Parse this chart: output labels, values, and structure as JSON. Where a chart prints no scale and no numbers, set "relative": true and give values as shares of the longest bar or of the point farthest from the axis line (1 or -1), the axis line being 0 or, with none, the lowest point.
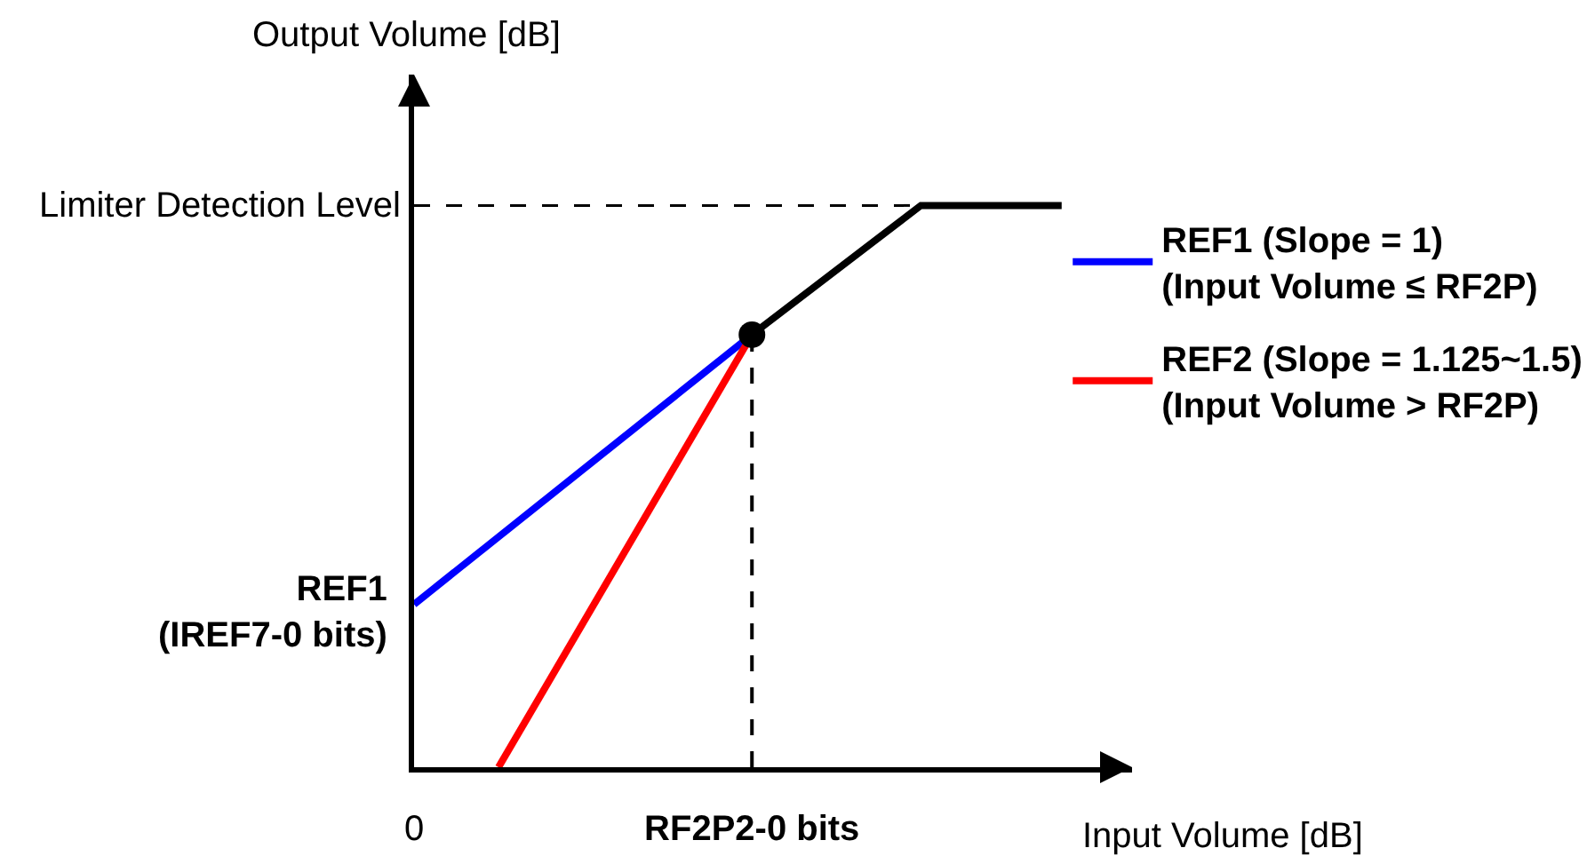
{
  "chart_data": {
    "type": "line",
    "relative": true,
    "categories": [
      "0",
      null,
      null,
      null,
      null,
      null,
      null,
      null,
      null,
      null,
      null,
      null,
      "RF2P2-0 bits",
      null,
      null,
      null,
      null,
      null,
      null,
      null,
      null,
      null,
      null,
      null
    ],
    "series": [
      {
        "name": "REF1 (Slope = 1)\n(Input Volume ≤ RF2P)",
        "color": "#0000ff",
        "values": [
          0.29,
          null,
          null,
          null,
          null,
          null,
          null,
          null,
          null,
          null,
          null,
          null,
          0.77,
          null,
          null,
          null,
          null,
          null,
          null,
          null,
          null,
          null,
          null,
          null
        ]
      },
      {
        "name": "REF2 (Slope = 1.125~1.5)\n(Input Volume > RF2P)",
        "color": "#ff0000",
        "values": [
          null,
          null,
          null,
          0,
          null,
          null,
          null,
          null,
          null,
          null,
          null,
          null,
          0.77,
          null,
          null,
          null,
          null,
          null,
          null,
          null,
          null,
          null,
          null,
          null
        ]
      },
      {
        "color": "#000000",
        "values": [
          null,
          null,
          null,
          null,
          null,
          null,
          null,
          null,
          null,
          null,
          null,
          null,
          0.77,
          null,
          null,
          null,
          null,
          null,
          1,
          null,
          null,
          null,
          null,
          1
        ]
      },
      {
        "type": "lollipop",
        "marker": "circle",
        "line_style": "dashed",
        "color": "#000000",
        "values": [
          null,
          null,
          null,
          null,
          null,
          null,
          null,
          null,
          null,
          null,
          null,
          null,
          0.77,
          null,
          null,
          null,
          null,
          null,
          null,
          null,
          null,
          null,
          null,
          null
        ]
      }
    ],
    "xlabel": "Input Volume [dB]",
    "ylabel": "Output Volume [dB]",
    "ref_lines": [
      {
        "axis": "y",
        "value": 1,
        "label": "Limiter Detection Level",
        "color": "#000000",
        "line_style": "dashed"
      }
    ],
    "annotations": [
      {
        "text": "REF1\n(IREF7-0 bits)",
        "x": "0",
        "y": 0.29
      }
    ],
    "legend": "right"
  }
}
